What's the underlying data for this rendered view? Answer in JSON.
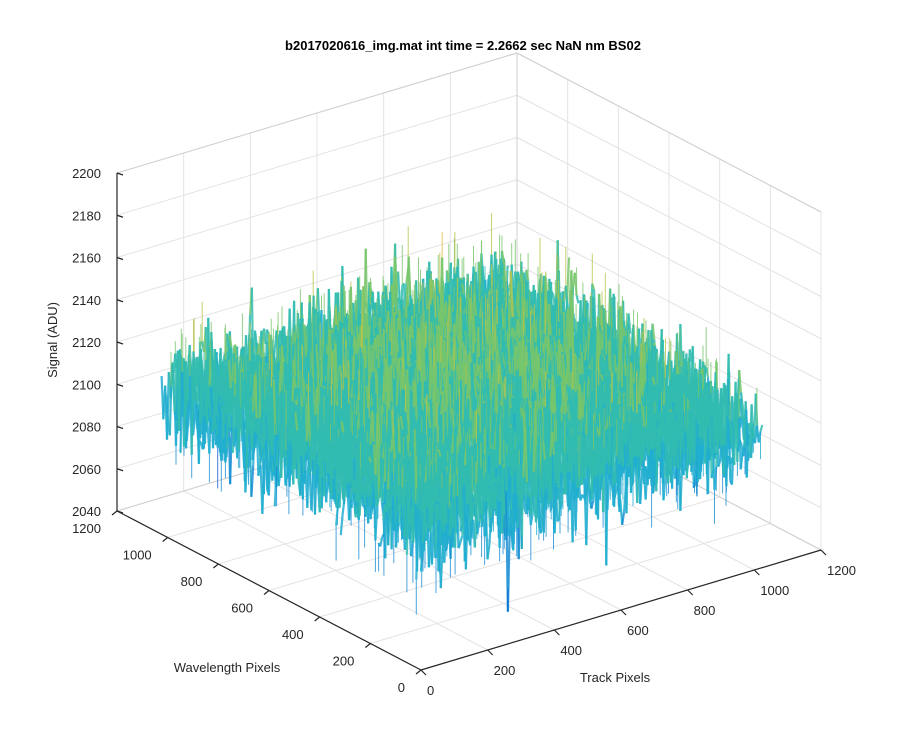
{
  "chart_data": {
    "type": "surface",
    "title": "b2017020616_img.mat int time = 2.2662 sec  NaN nm BS02",
    "xlabel": "Track Pixels",
    "ylabel": "Wavelength Pixels",
    "zlabel": "Signal (ADU)",
    "xlim": [
      0,
      1200
    ],
    "ylim": [
      0,
      1200
    ],
    "zlim": [
      2040,
      2200
    ],
    "x_ticks": [
      "0",
      "200",
      "400",
      "600",
      "800",
      "1000",
      "1200"
    ],
    "y_ticks": [
      "0",
      "200",
      "400",
      "600",
      "800",
      "1000",
      "1200"
    ],
    "z_ticks": [
      "2040",
      "2060",
      "2080",
      "2100",
      "2120",
      "2140",
      "2160",
      "2180",
      "2200"
    ],
    "x_extent": [
      0,
      1024
    ],
    "y_extent": [
      0,
      1024
    ],
    "signal_mean": 2105,
    "signal_range": [
      2045,
      2185
    ],
    "colormap": [
      "#0b5fd6",
      "#1a8ed4",
      "#21aed0",
      "#33bcb0",
      "#78c56c",
      "#b9c44a",
      "#e6bb3b"
    ],
    "grid": true
  }
}
